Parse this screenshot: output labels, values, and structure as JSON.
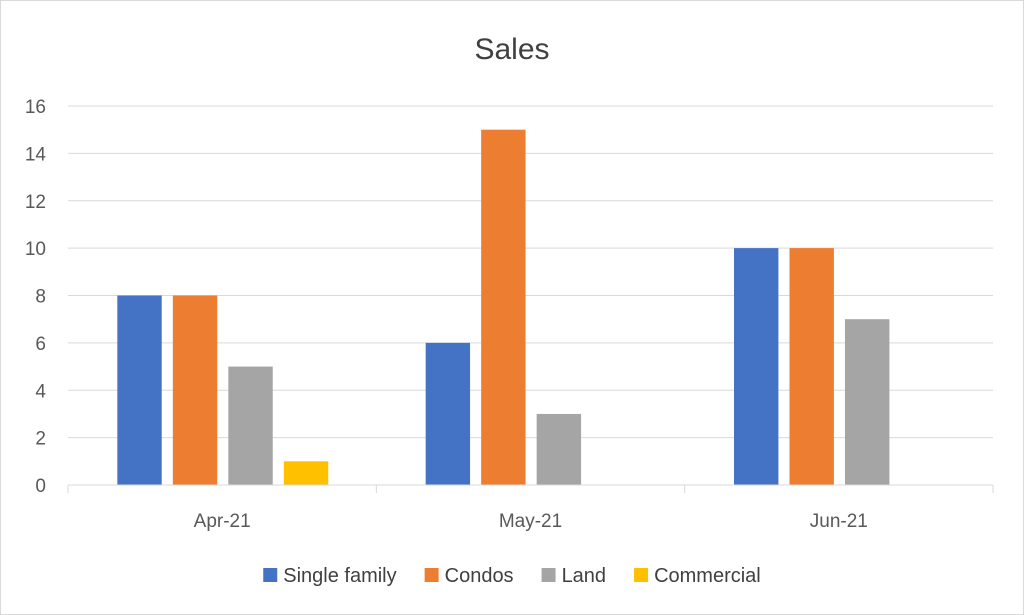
{
  "chart_data": {
    "type": "bar",
    "title": "Sales",
    "xlabel": "",
    "ylabel": "",
    "categories": [
      "Apr-21",
      "May-21",
      "Jun-21"
    ],
    "series": [
      {
        "name": "Single family",
        "color": "#4472C4",
        "values": [
          8,
          6,
          10
        ]
      },
      {
        "name": "Condos",
        "color": "#ED7D31",
        "values": [
          8,
          15,
          10
        ]
      },
      {
        "name": "Land",
        "color": "#A5A5A5",
        "values": [
          5,
          3,
          7
        ]
      },
      {
        "name": "Commercial",
        "color": "#FFC000",
        "values": [
          1,
          0,
          0
        ]
      }
    ],
    "ylim": [
      0,
      16
    ],
    "yticks": [
      0,
      2,
      4,
      6,
      8,
      10,
      12,
      14,
      16
    ],
    "grid": true,
    "legend_position": "bottom"
  }
}
